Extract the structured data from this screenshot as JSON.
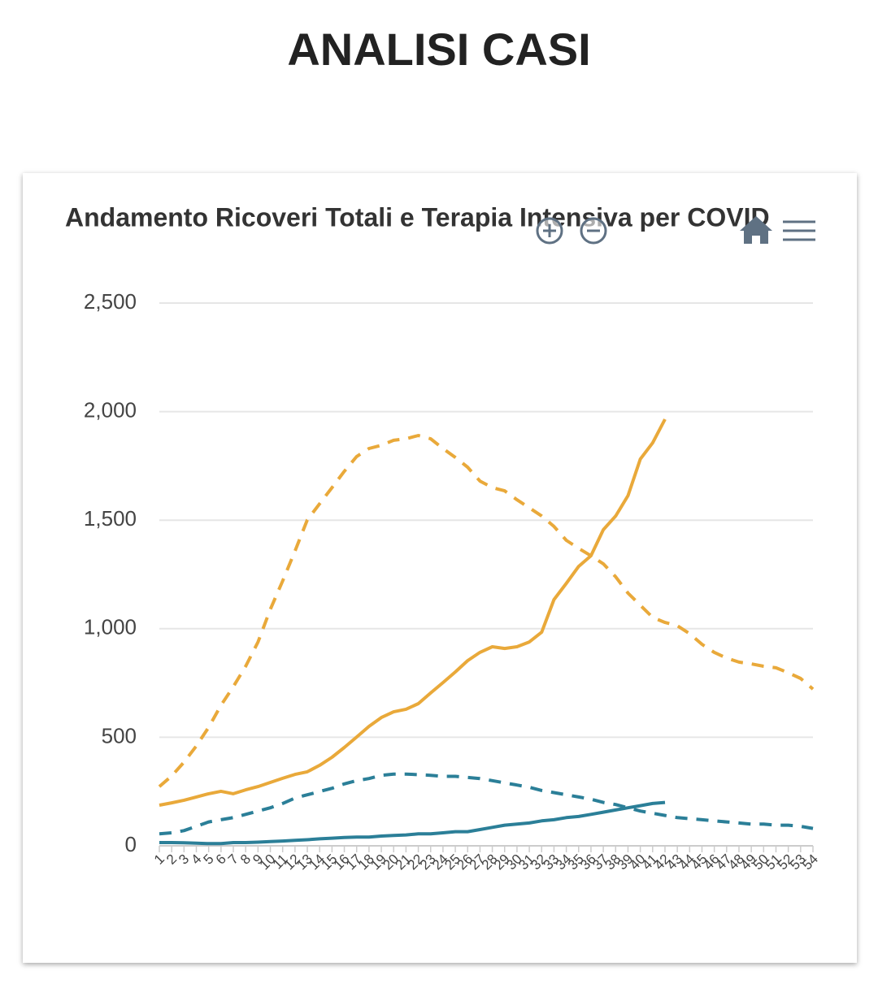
{
  "page_title": "ANALISI CASI",
  "chart_data": {
    "type": "line",
    "title": "Andamento Ricoveri Totali e Terapia Intensiva per COVID",
    "categories": [
      "1",
      "2",
      "3",
      "4",
      "5",
      "6",
      "7",
      "8",
      "9",
      "10",
      "11",
      "12",
      "13",
      "14",
      "15",
      "16",
      "17",
      "18",
      "19",
      "20",
      "21",
      "22",
      "23",
      "24",
      "25",
      "26",
      "27",
      "28",
      "29",
      "30",
      "31",
      "32",
      "33",
      "34",
      "35",
      "36",
      "37",
      "38",
      "39",
      "40",
      "41",
      "42",
      "43",
      "44",
      "45",
      "46",
      "47",
      "48",
      "49",
      "50",
      "51",
      "52",
      "53",
      "54"
    ],
    "series": [
      {
        "color": "#e9a93a",
        "line_style": "dashed",
        "values": [
          273,
          322,
          385,
          460,
          546,
          647,
          733,
          827,
          939,
          1089,
          1220,
          1358,
          1501,
          1576,
          1650,
          1725,
          1793,
          1830,
          1845,
          1868,
          1875,
          1890,
          1875,
          1830,
          1789,
          1744,
          1680,
          1650,
          1635,
          1594,
          1557,
          1519,
          1471,
          1407,
          1370,
          1336,
          1299,
          1239,
          1164,
          1108,
          1052,
          1029,
          1014,
          977,
          928,
          891,
          865,
          846,
          838,
          827,
          820,
          797,
          771,
          722
        ]
      },
      {
        "color": "#e9a93a",
        "line_style": "solid",
        "values": [
          187,
          198,
          210,
          225,
          240,
          251,
          240,
          258,
          273,
          292,
          311,
          329,
          341,
          371,
          408,
          453,
          501,
          550,
          591,
          617,
          629,
          655,
          704,
          752,
          801,
          853,
          891,
          917,
          909,
          917,
          939,
          984,
          1134,
          1209,
          1287,
          1336,
          1456,
          1519,
          1613,
          1781,
          1856,
          1965,
          null,
          null,
          null,
          null,
          null,
          null,
          null,
          null,
          null,
          null,
          null,
          null
        ]
      },
      {
        "color": "#2b7f98",
        "line_style": "dashed",
        "values": [
          55,
          60,
          70,
          90,
          110,
          120,
          130,
          145,
          160,
          175,
          195,
          220,
          235,
          250,
          265,
          285,
          300,
          310,
          325,
          330,
          330,
          328,
          325,
          320,
          320,
          315,
          310,
          300,
          290,
          280,
          270,
          255,
          245,
          235,
          225,
          215,
          200,
          190,
          175,
          160,
          150,
          140,
          130,
          125,
          120,
          115,
          110,
          105,
          100,
          100,
          95,
          95,
          90,
          80
        ]
      },
      {
        "color": "#2b7f98",
        "line_style": "solid",
        "values": [
          15,
          15,
          14,
          12,
          10,
          10,
          15,
          15,
          17,
          20,
          22,
          25,
          28,
          32,
          35,
          38,
          40,
          40,
          45,
          48,
          50,
          55,
          55,
          60,
          65,
          65,
          75,
          85,
          95,
          100,
          105,
          115,
          120,
          130,
          135,
          145,
          155,
          165,
          175,
          185,
          195,
          200,
          null,
          null,
          null,
          null,
          null,
          null,
          null,
          null,
          null,
          null,
          null,
          null
        ]
      }
    ],
    "ylim": [
      0,
      2500
    ],
    "yticks": [
      0,
      500,
      {
        "value": 1000,
        "label": "1,000"
      },
      {
        "value": 1500,
        "label": "1,500"
      },
      {
        "value": 2000,
        "label": "2,000"
      },
      {
        "value": 2500,
        "label": "2,500"
      }
    ],
    "grid": true
  }
}
